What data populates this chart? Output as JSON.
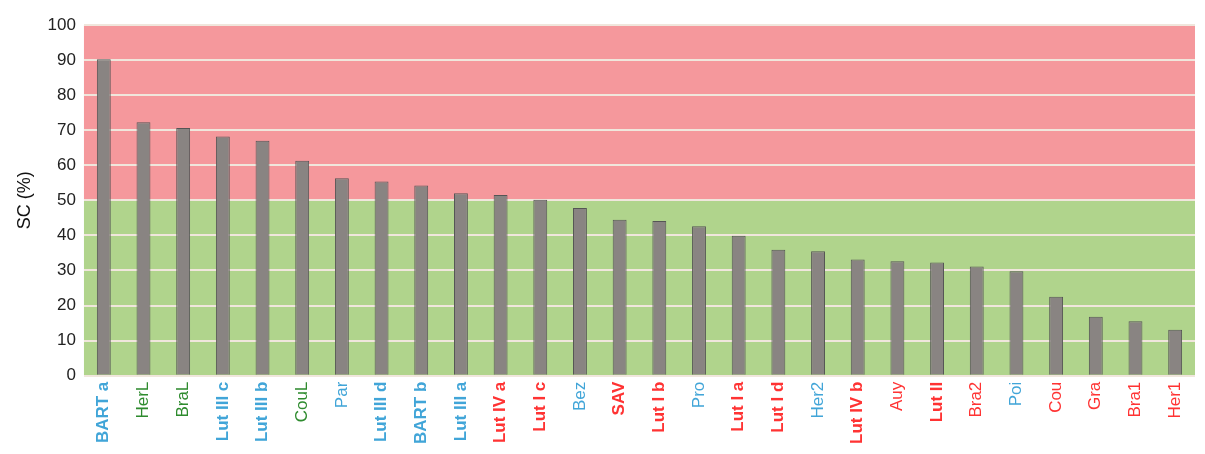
{
  "chart_data": {
    "type": "bar",
    "ylabel": "SC (%)",
    "categories": [
      "BART a",
      "HerL",
      "BraL",
      "Lut III c",
      "Lut III b",
      "CouL",
      "Par",
      "Lut III d",
      "BART b",
      "Lut III a",
      "Lut IV a",
      "Lut I c",
      "Bez",
      "SAV",
      "Lut I b",
      "Pro",
      "Lut I a",
      "Lut I d",
      "Her2",
      "Lut IV b",
      "Auy",
      "Lut II",
      "Bra2",
      "Poi",
      "Cou",
      "Gra",
      "Bra1",
      "Her1"
    ],
    "values": [
      90.2,
      72.3,
      70.6,
      68.2,
      67.0,
      61.3,
      56.3,
      55.4,
      54.2,
      52.0,
      51.5,
      50.2,
      47.8,
      44.5,
      44.1,
      42.6,
      39.9,
      35.9,
      35.5,
      33.1,
      32.6,
      32.3,
      31.1,
      29.8,
      22.5,
      16.8,
      15.5,
      13.1
    ],
    "color": "#898482",
    "ylim": [
      0,
      100
    ],
    "yticks": [
      0,
      10,
      20,
      30,
      40,
      50,
      60,
      70,
      80,
      90,
      100
    ],
    "bands": [
      {
        "axis": "y",
        "from": 0,
        "to": 50,
        "color": "#b0d48c"
      },
      {
        "axis": "y",
        "from": 50,
        "to": 100,
        "color": "#f5989c"
      }
    ],
    "grid": "y"
  }
}
